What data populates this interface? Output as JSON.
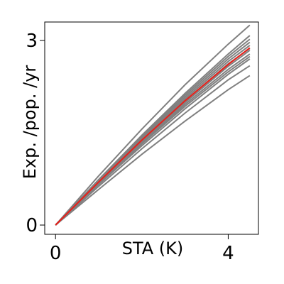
{
  "chart_data": {
    "type": "line",
    "title": "",
    "xlabel": "STA (K)",
    "ylabel": "Exp. /pop. /yr",
    "xlim": [
      -0.25,
      4.7
    ],
    "ylim": [
      -0.15,
      3.3
    ],
    "xticks": [
      0,
      4
    ],
    "yticks": [
      0,
      3
    ],
    "grid": false,
    "legend": "none",
    "line_colors": {
      "ensemble": "#808080",
      "highlight": "#e8201a"
    },
    "x": [
      0,
      1,
      2,
      3,
      4,
      4.5
    ],
    "series": [
      {
        "values": [
          0,
          0.8,
          1.56,
          2.28,
          2.94,
          3.25
        ]
      },
      {
        "values": [
          0,
          0.74,
          1.46,
          2.14,
          2.78,
          3.08
        ]
      },
      {
        "values": [
          0,
          0.73,
          1.44,
          2.11,
          2.74,
          3.02
        ]
      },
      {
        "values": [
          0,
          0.72,
          1.42,
          2.08,
          2.7,
          2.97
        ]
      },
      {
        "values": [
          0,
          0.71,
          1.4,
          2.05,
          2.66,
          2.92
        ]
      },
      {
        "values": [
          0,
          0.7,
          1.38,
          2.02,
          2.62,
          2.87
        ]
      },
      {
        "values": [
          0,
          0.69,
          1.36,
          1.99,
          2.58,
          2.84
        ]
      },
      {
        "values": [
          0,
          0.68,
          1.34,
          1.96,
          2.53,
          2.78
        ]
      },
      {
        "values": [
          0,
          0.67,
          1.32,
          1.93,
          2.49,
          2.74
        ]
      },
      {
        "values": [
          0,
          0.66,
          1.29,
          1.89,
          2.45,
          2.7
        ]
      },
      {
        "values": [
          0,
          0.63,
          1.24,
          1.82,
          2.36,
          2.59
        ]
      },
      {
        "values": [
          0,
          0.58,
          1.15,
          1.69,
          2.2,
          2.43
        ],
        "highlight": false
      }
    ],
    "highlight_series": {
      "values": [
        0,
        0.7,
        1.38,
        2.02,
        2.61,
        2.88
      ]
    }
  }
}
